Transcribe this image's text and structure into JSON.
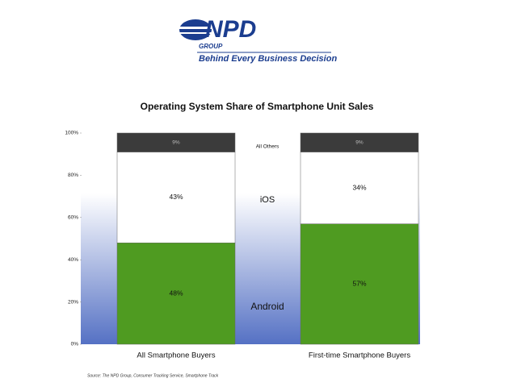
{
  "header": {
    "logo": "NPD",
    "logo_sub": "GROUP",
    "tagline": "Behind Every Business Decision"
  },
  "chart_data": {
    "type": "stacked-bar",
    "title": "Operating System Share of Smartphone Unit Sales",
    "categories": [
      "All Smartphone Buyers",
      "First-time Smartphone Buyers"
    ],
    "series": [
      {
        "name": "Android",
        "color": "#4f9b21",
        "values": [
          48,
          57
        ],
        "value_labels": [
          "48%",
          "57%"
        ]
      },
      {
        "name": "iOS",
        "color": "#ffffff",
        "values": [
          43,
          34
        ],
        "value_labels": [
          "43%",
          "34%"
        ]
      },
      {
        "name": "All Others",
        "color": "#3b3b3b",
        "values": [
          9,
          9
        ],
        "value_labels": [
          "9%",
          "9%"
        ]
      }
    ],
    "ylim": [
      0,
      100
    ],
    "yticks": [
      {
        "value": 0,
        "label": "0%"
      },
      {
        "value": 20,
        "label": "20%"
      },
      {
        "value": 40,
        "label": "40%"
      },
      {
        "value": 60,
        "label": "60%"
      },
      {
        "value": 80,
        "label": "80%"
      },
      {
        "value": 100,
        "label": "100%"
      }
    ],
    "source": "Source: The NPD Group, Consumer Tracking Service, Smartphone Track"
  }
}
